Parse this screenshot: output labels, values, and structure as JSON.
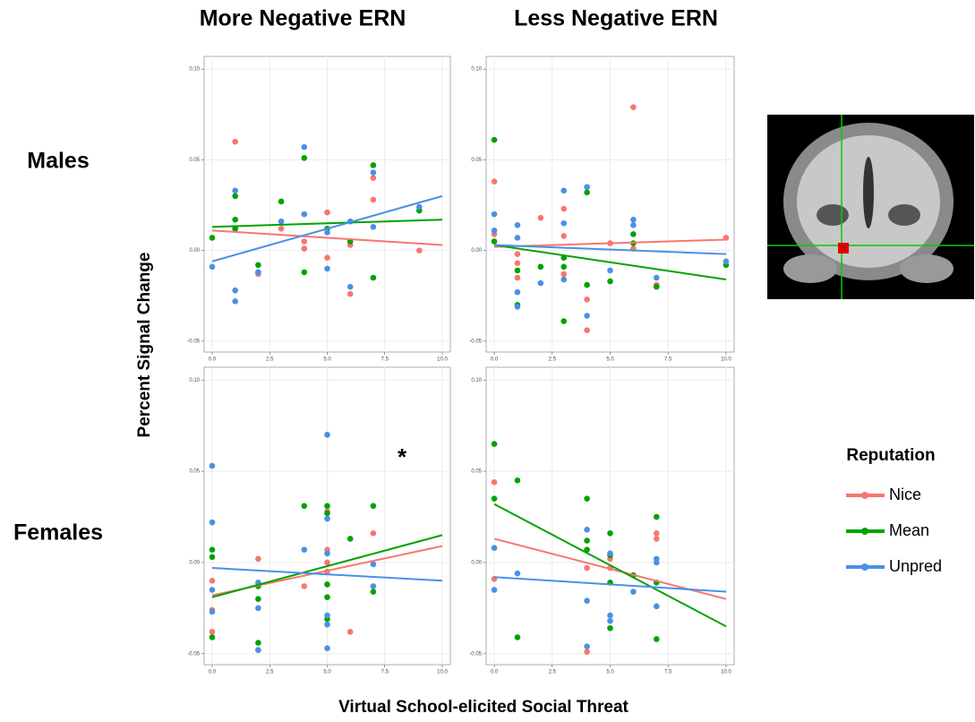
{
  "figure": {
    "column_titles": [
      "More Negative ERN",
      "Less Negative ERN"
    ],
    "row_titles": [
      "Males",
      "Females"
    ],
    "y_label": "Percent Signal Change",
    "x_label": "Virtual School-elicited Social Threat"
  },
  "legend": {
    "title": "Reputation",
    "entries": [
      "Nice",
      "Mean",
      "Unpred"
    ]
  },
  "chart_data": [
    {
      "type": "scatter",
      "xlim": [
        -0.35,
        10.35
      ],
      "ylim": [
        -0.056,
        0.107
      ],
      "grid": true,
      "fit_x": [
        0,
        10
      ],
      "xticks": [
        {
          "value": 0,
          "label": "0.0"
        },
        {
          "value": 2.5,
          "label": "2.5"
        },
        {
          "value": 5,
          "label": "5.0"
        },
        {
          "value": 7.5,
          "label": "7.5"
        },
        {
          "value": 10,
          "label": "10.0"
        }
      ],
      "yticks": [
        {
          "value": -0.05,
          "label": "-0.05"
        },
        {
          "value": 0,
          "label": "0.00"
        },
        {
          "value": 0.05,
          "label": "0.05"
        },
        {
          "value": 0.1,
          "label": "0.10"
        }
      ],
      "series": [
        {
          "color": "#f8766d",
          "x": [
            1,
            1,
            2,
            3,
            4,
            4,
            5,
            5,
            6,
            6,
            7,
            7,
            9
          ],
          "values": [
            0.06,
            0.012,
            -0.013,
            0.012,
            0.001,
            0.005,
            -0.004,
            0.021,
            -0.024,
            0.003,
            0.04,
            0.028,
            0.0
          ],
          "fit": [
            0.011,
            0.003
          ]
        },
        {
          "color": "#00a300",
          "x": [
            0,
            1,
            1,
            1,
            2,
            2,
            3,
            4,
            4,
            5,
            6,
            7,
            7,
            9
          ],
          "values": [
            0.007,
            0.03,
            0.017,
            0.012,
            -0.008,
            -0.012,
            0.027,
            0.051,
            -0.012,
            0.012,
            0.005,
            0.047,
            -0.015,
            0.022
          ],
          "fit": [
            0.013,
            0.017
          ]
        },
        {
          "color": "#4a90e8",
          "x": [
            0,
            1,
            1,
            1,
            2,
            3,
            4,
            4,
            5,
            5,
            6,
            6,
            7,
            7,
            9
          ],
          "values": [
            -0.009,
            0.033,
            -0.022,
            -0.028,
            -0.012,
            0.016,
            0.057,
            0.02,
            0.01,
            -0.01,
            0.016,
            -0.02,
            0.043,
            0.013,
            0.024
          ],
          "fit": [
            -0.006,
            0.03
          ]
        }
      ]
    },
    {
      "type": "scatter",
      "xlim": [
        -0.35,
        10.35
      ],
      "ylim": [
        -0.056,
        0.107
      ],
      "grid": true,
      "fit_x": [
        0,
        10
      ],
      "xticks": [
        {
          "value": 0,
          "label": "0.0"
        },
        {
          "value": 2.5,
          "label": "2.5"
        },
        {
          "value": 5,
          "label": "5.0"
        },
        {
          "value": 7.5,
          "label": "7.5"
        },
        {
          "value": 10,
          "label": "10.0"
        }
      ],
      "yticks": [
        {
          "value": -0.05,
          "label": "-0.05"
        },
        {
          "value": 0,
          "label": "0.00"
        },
        {
          "value": 0.05,
          "label": "0.05"
        },
        {
          "value": 0.1,
          "label": "0.10"
        }
      ],
      "series": [
        {
          "color": "#f8766d",
          "x": [
            0,
            0,
            1,
            1,
            1,
            2,
            3,
            3,
            3,
            4,
            4,
            5,
            6,
            6,
            7,
            10
          ],
          "values": [
            0.038,
            0.009,
            -0.002,
            -0.007,
            -0.015,
            0.018,
            0.023,
            0.008,
            -0.013,
            -0.027,
            -0.044,
            0.004,
            0.079,
            0.001,
            -0.019,
            0.007
          ],
          "fit": [
            0.002,
            0.006
          ]
        },
        {
          "color": "#00a300",
          "x": [
            0,
            0,
            1,
            1,
            2,
            3,
            3,
            3,
            4,
            4,
            5,
            6,
            6,
            7,
            10
          ],
          "values": [
            0.061,
            0.005,
            -0.011,
            -0.03,
            -0.009,
            -0.009,
            -0.004,
            -0.039,
            0.032,
            -0.019,
            -0.017,
            0.009,
            0.004,
            -0.02,
            -0.008
          ],
          "fit": [
            0.003,
            -0.016
          ]
        },
        {
          "color": "#4a90e8",
          "x": [
            0,
            0,
            1,
            1,
            1,
            1,
            2,
            3,
            3,
            3,
            4,
            4,
            5,
            6,
            6,
            7,
            10
          ],
          "values": [
            0.02,
            0.011,
            0.014,
            0.007,
            -0.023,
            -0.031,
            -0.018,
            0.033,
            0.015,
            -0.016,
            0.035,
            -0.036,
            -0.011,
            0.017,
            0.014,
            -0.015,
            -0.006
          ],
          "fit": [
            0.003,
            -0.002
          ]
        }
      ]
    },
    {
      "type": "scatter",
      "xlim": [
        -0.35,
        10.35
      ],
      "ylim": [
        -0.056,
        0.107
      ],
      "grid": true,
      "fit_x": [
        0,
        10
      ],
      "annotation": "*",
      "xticks": [
        {
          "value": 0,
          "label": "0.0"
        },
        {
          "value": 2.5,
          "label": "2.5"
        },
        {
          "value": 5,
          "label": "5.0"
        },
        {
          "value": 7.5,
          "label": "7.5"
        },
        {
          "value": 10,
          "label": "10.0"
        }
      ],
      "yticks": [
        {
          "value": -0.05,
          "label": "-0.05"
        },
        {
          "value": 0,
          "label": "0.00"
        },
        {
          "value": 0.05,
          "label": "0.05"
        },
        {
          "value": 0.1,
          "label": "0.10"
        }
      ],
      "series": [
        {
          "color": "#f8766d",
          "x": [
            0,
            0,
            0,
            2,
            2,
            4,
            5,
            5,
            5,
            5,
            6,
            7
          ],
          "values": [
            -0.01,
            -0.026,
            -0.038,
            0.002,
            -0.048,
            -0.013,
            0.007,
            0.028,
            0.0,
            -0.005,
            -0.038,
            0.016
          ],
          "fit": [
            -0.018,
            0.009
          ]
        },
        {
          "color": "#00a300",
          "x": [
            0,
            0,
            0,
            2,
            2,
            2,
            4,
            5,
            5,
            5,
            5,
            5,
            6,
            7,
            7
          ],
          "values": [
            0.007,
            0.003,
            -0.041,
            -0.013,
            -0.02,
            -0.044,
            0.031,
            0.031,
            0.027,
            -0.012,
            -0.019,
            -0.031,
            0.013,
            0.031,
            -0.016
          ],
          "fit": [
            -0.019,
            0.015
          ]
        },
        {
          "color": "#4a90e8",
          "x": [
            0,
            0,
            0,
            0,
            2,
            2,
            2,
            4,
            5,
            5,
            5,
            5,
            5,
            5,
            7,
            7
          ],
          "values": [
            0.053,
            0.022,
            -0.015,
            -0.027,
            -0.011,
            -0.025,
            -0.048,
            0.007,
            0.07,
            0.024,
            0.005,
            -0.029,
            -0.034,
            -0.047,
            -0.001,
            -0.013
          ],
          "fit": [
            -0.003,
            -0.01
          ]
        }
      ]
    },
    {
      "type": "scatter",
      "xlim": [
        -0.35,
        10.35
      ],
      "ylim": [
        -0.056,
        0.107
      ],
      "grid": true,
      "fit_x": [
        0,
        10
      ],
      "xticks": [
        {
          "value": 0,
          "label": "0.0"
        },
        {
          "value": 2.5,
          "label": "2.5"
        },
        {
          "value": 5,
          "label": "5.0"
        },
        {
          "value": 7.5,
          "label": "7.5"
        },
        {
          "value": 10,
          "label": "10.0"
        }
      ],
      "yticks": [
        {
          "value": -0.05,
          "label": "-0.05"
        },
        {
          "value": 0,
          "label": "0.00"
        },
        {
          "value": 0.05,
          "label": "0.05"
        },
        {
          "value": 0.1,
          "label": "0.10"
        }
      ],
      "series": [
        {
          "color": "#f8766d",
          "x": [
            0,
            0,
            4,
            4,
            5,
            5,
            6,
            7,
            7
          ],
          "values": [
            0.044,
            -0.009,
            -0.003,
            -0.049,
            0.002,
            -0.003,
            -0.007,
            0.016,
            0.013
          ],
          "fit": [
            0.013,
            -0.02
          ]
        },
        {
          "color": "#00a300",
          "x": [
            0,
            0,
            1,
            1,
            4,
            4,
            4,
            5,
            5,
            5,
            5,
            6,
            7,
            7,
            7
          ],
          "values": [
            0.065,
            0.035,
            0.045,
            -0.041,
            0.035,
            0.012,
            0.007,
            0.016,
            0.004,
            -0.011,
            -0.036,
            -0.007,
            0.025,
            -0.011,
            -0.042
          ],
          "fit": [
            0.032,
            -0.035
          ]
        },
        {
          "color": "#4a90e8",
          "x": [
            0,
            0,
            1,
            4,
            4,
            4,
            5,
            5,
            5,
            6,
            7,
            7,
            7
          ],
          "values": [
            0.008,
            -0.015,
            -0.006,
            0.018,
            -0.021,
            -0.046,
            0.005,
            -0.029,
            -0.032,
            -0.016,
            0.002,
            0.0,
            -0.024
          ],
          "fit": [
            -0.008,
            -0.016
          ]
        }
      ]
    }
  ]
}
